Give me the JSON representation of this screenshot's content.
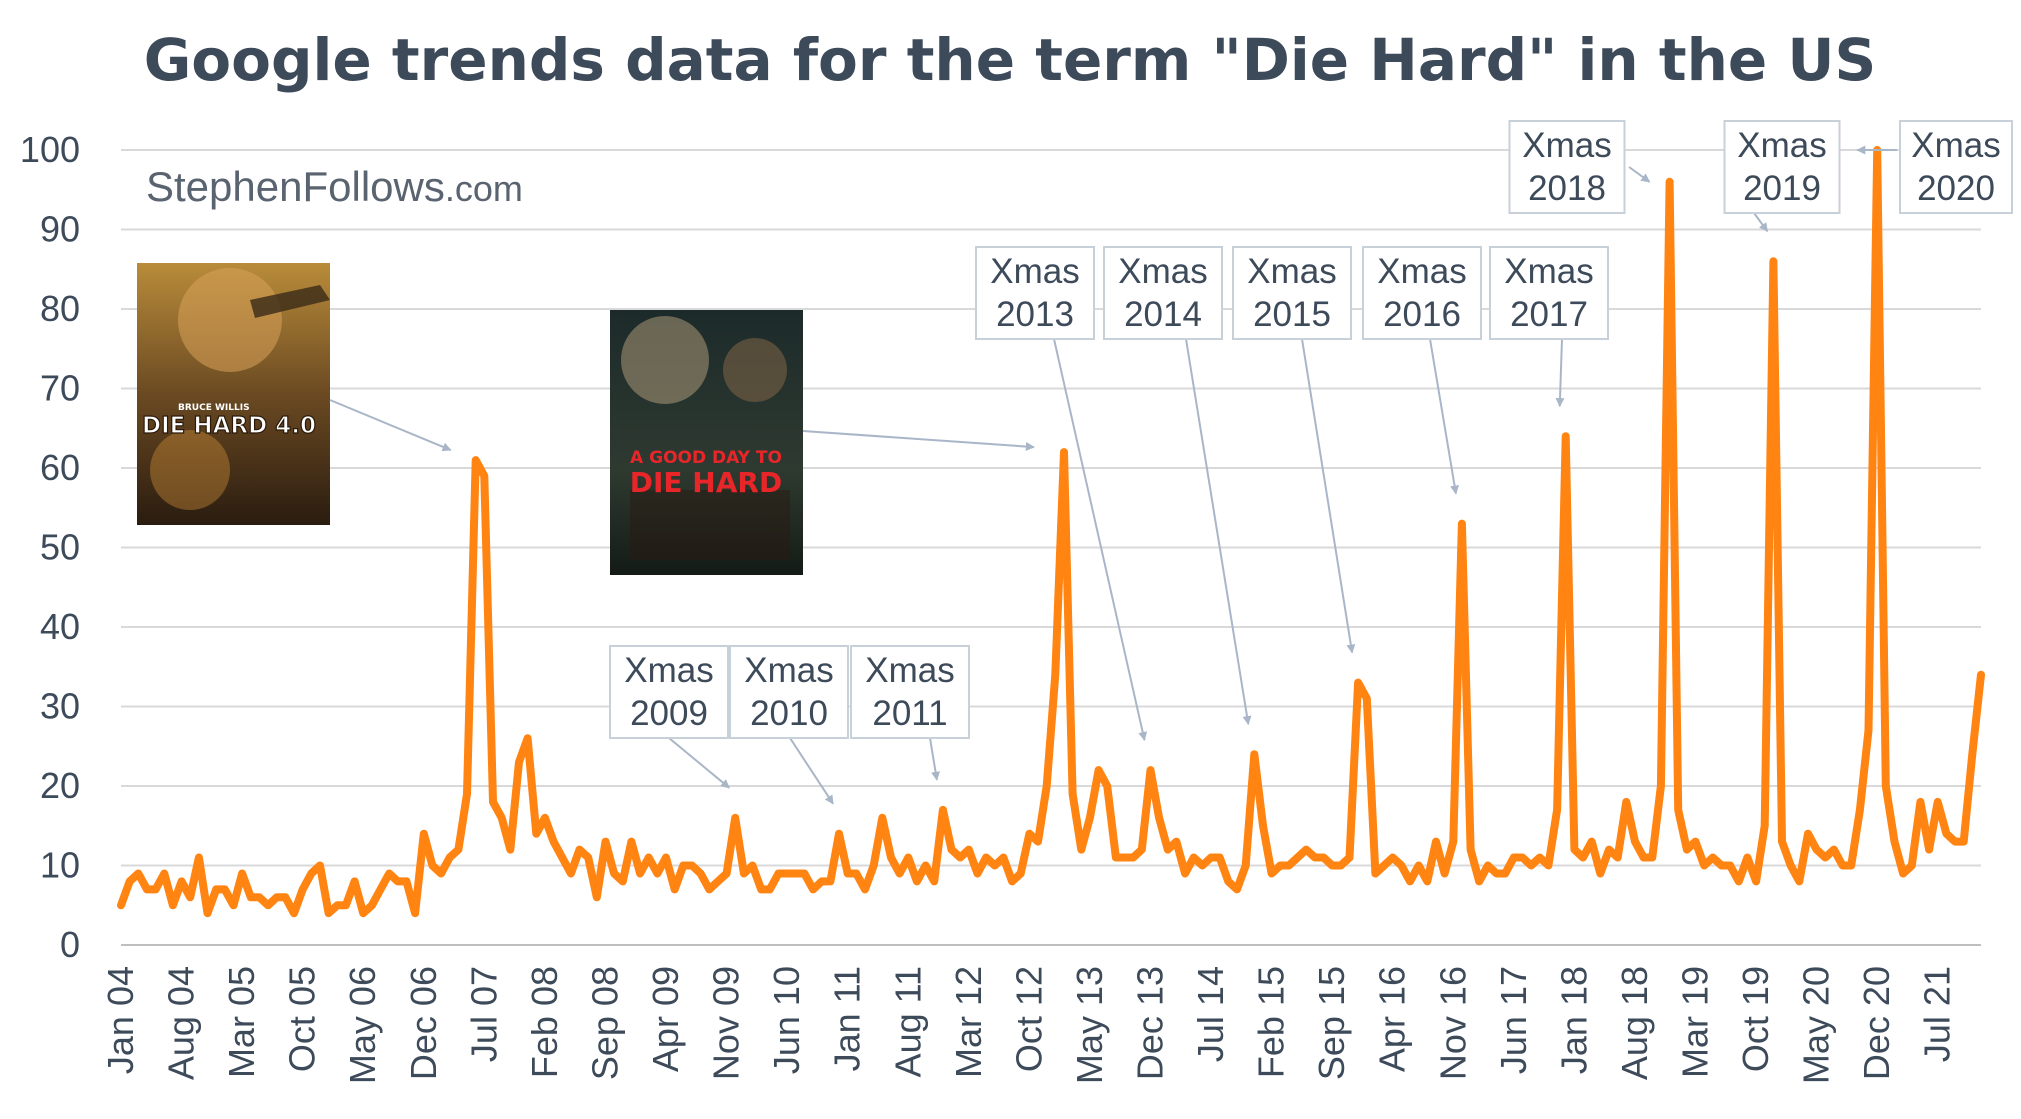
{
  "chart_data": {
    "type": "line",
    "title": "Google trends data for the term \"Die Hard\" in the US",
    "xlabel": "",
    "ylabel": "",
    "ylim": [
      0,
      100
    ],
    "grid": true,
    "y_ticks": [
      "0",
      "10",
      "20",
      "30",
      "40",
      "50",
      "60",
      "70",
      "80",
      "90",
      "100"
    ],
    "x_tick_labels": [
      "Jan 04",
      "Aug 04",
      "Mar 05",
      "Oct 05",
      "May 06",
      "Dec 06",
      "Jul 07",
      "Feb 08",
      "Sep 08",
      "Apr 09",
      "Nov 09",
      "Jun 10",
      "Jan 11",
      "Aug 11",
      "Mar 12",
      "Oct 12",
      "May 13",
      "Dec 13",
      "Jul 14",
      "Feb 15",
      "Sep 15",
      "Apr 16",
      "Nov 16",
      "Jun 17",
      "Jan 18",
      "Aug 18",
      "Mar 19",
      "Oct 19",
      "May 20",
      "Dec 20",
      "Jul 21"
    ],
    "series": [
      {
        "color": "#ff8412",
        "values": [
          5,
          8,
          9,
          7,
          7,
          9,
          5,
          8,
          6,
          11,
          4,
          7,
          7,
          5,
          9,
          6,
          6,
          5,
          6,
          6,
          4,
          7,
          9,
          10,
          4,
          5,
          5,
          8,
          4,
          5,
          7,
          9,
          8,
          8,
          4,
          14,
          10,
          9,
          11,
          12,
          19,
          61,
          59,
          18,
          16,
          12,
          23,
          26,
          14,
          16,
          13,
          11,
          9,
          12,
          11,
          6,
          13,
          9,
          8,
          13,
          9,
          11,
          9,
          11,
          7,
          10,
          10,
          9,
          7,
          8,
          9,
          16,
          9,
          10,
          7,
          7,
          9,
          9,
          9,
          9,
          7,
          8,
          8,
          14,
          9,
          9,
          7,
          10,
          16,
          11,
          9,
          11,
          8,
          10,
          8,
          17,
          12,
          11,
          12,
          9,
          11,
          10,
          11,
          8,
          9,
          14,
          13,
          20,
          34,
          62,
          19,
          12,
          16,
          22,
          20,
          11,
          11,
          11,
          12,
          22,
          16,
          12,
          13,
          9,
          11,
          10,
          11,
          11,
          8,
          7,
          10,
          24,
          15,
          9,
          10,
          10,
          11,
          12,
          11,
          11,
          10,
          10,
          11,
          33,
          31,
          9,
          10,
          11,
          10,
          8,
          10,
          8,
          13,
          9,
          13,
          53,
          12,
          8,
          10,
          9,
          9,
          11,
          11,
          10,
          11,
          10,
          17,
          64,
          12,
          11,
          13,
          9,
          12,
          11,
          18,
          13,
          11,
          11,
          20,
          96,
          17,
          12,
          13,
          10,
          11,
          10,
          10,
          8,
          11,
          8,
          15,
          86,
          13,
          10,
          8,
          14,
          12,
          11,
          12,
          10,
          10,
          17,
          27,
          100,
          20,
          13,
          9,
          10,
          18,
          12,
          18,
          14,
          13,
          13,
          24,
          34
        ]
      }
    ],
    "annotations": [
      {
        "lines": [
          "Xmas",
          "2009"
        ]
      },
      {
        "lines": [
          "Xmas",
          "2010"
        ]
      },
      {
        "lines": [
          "Xmas",
          "2011"
        ]
      },
      {
        "lines": [
          "Xmas",
          "2013"
        ]
      },
      {
        "lines": [
          "Xmas",
          "2014"
        ]
      },
      {
        "lines": [
          "Xmas",
          "2015"
        ]
      },
      {
        "lines": [
          "Xmas",
          "2016"
        ]
      },
      {
        "lines": [
          "Xmas",
          "2017"
        ]
      },
      {
        "lines": [
          "Xmas",
          "2018"
        ]
      },
      {
        "lines": [
          "Xmas",
          "2019"
        ]
      },
      {
        "lines": [
          "Xmas",
          "2020"
        ]
      }
    ],
    "watermark": {
      "main": "StephenFollows",
      "suffix": ".com"
    },
    "posters": [
      {
        "author": "BRUCE WILLIS",
        "title_line1": "DIE HARD 4.0",
        "title_line2": ""
      },
      {
        "author": "",
        "title_line1": "A GOOD DAY TO",
        "title_line2": "DIE HARD"
      }
    ],
    "colors": {
      "line": "#ff8412",
      "grid": "#d9d9d9",
      "text": "#3d4a5a",
      "arrow": "#a9b6c8",
      "box_border": "#c8d0da"
    }
  }
}
